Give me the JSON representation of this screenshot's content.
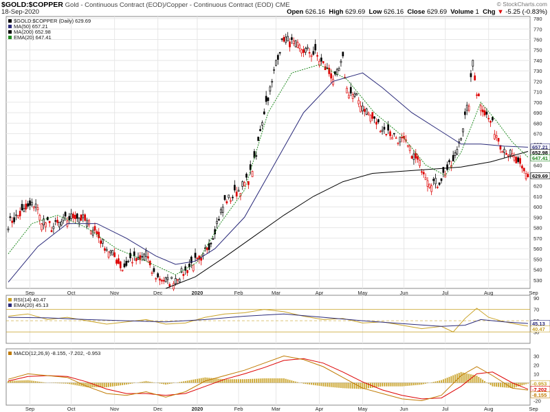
{
  "header": {
    "symbol": "$GOLD:$COPPER",
    "description": "Gold - Continuous Contract (EOD)/Copper - Continuous Contract (EOD)",
    "exchange": "CME",
    "date": "18-Sep-2020",
    "brand": "© StockCharts.com",
    "ohlc": [
      {
        "label": "Open",
        "value": "626.16"
      },
      {
        "label": "High",
        "value": "629.69"
      },
      {
        "label": "Low",
        "value": "626.16"
      },
      {
        "label": "Close",
        "value": "629.69"
      },
      {
        "label": "Volume",
        "value": "1"
      },
      {
        "label": "Chg",
        "value": "-5.25 (-0.83%)"
      }
    ],
    "chg_arrow": "▼"
  },
  "colors": {
    "up": "#000000",
    "down": "#dd0000",
    "ma50": "#2a2a7a",
    "ma200": "#000000",
    "ema20": "#1f8a1f",
    "rsi": "#c9a227",
    "rsi_ema": "#2a2a7a",
    "macd": "#c07a00",
    "signal": "#dd0000",
    "hist": "#c9a227",
    "grid": "#e6e6e6"
  },
  "chart_data": [
    {
      "type": "candlestick",
      "panel": "price",
      "legend": [
        {
          "label": "$GOLD:$COPPER (Daily) 629.69",
          "color": "#000000"
        },
        {
          "label": "MA(50) 657.21",
          "color": "#2a2a7a"
        },
        {
          "label": "MA(200) 652.98",
          "color": "#000000"
        },
        {
          "label": "EMA(20) 647.41",
          "color": "#1f8a1f"
        }
      ],
      "x_labels": [
        "Sep",
        "Oct",
        "Nov",
        "Dec",
        "2020",
        "Feb",
        "Mar",
        "Apr",
        "May",
        "Jun",
        "Jul",
        "Aug",
        "Sep"
      ],
      "y_ticks": [
        530,
        540,
        550,
        560,
        570,
        580,
        590,
        600,
        610,
        620,
        630,
        640,
        650,
        660,
        670,
        680,
        690,
        700,
        710,
        720,
        730,
        740,
        750,
        760,
        770,
        780
      ],
      "ylim": [
        522,
        782
      ],
      "price_path": [
        [
          0,
          584
        ],
        [
          8,
          596
        ],
        [
          14,
          604
        ],
        [
          16,
          590
        ],
        [
          22,
          580
        ],
        [
          28,
          586
        ],
        [
          34,
          592
        ],
        [
          38,
          588
        ],
        [
          43,
          580
        ],
        [
          48,
          565
        ],
        [
          54,
          552
        ],
        [
          58,
          541
        ],
        [
          62,
          550
        ],
        [
          67,
          548
        ],
        [
          70,
          558
        ],
        [
          72,
          540
        ],
        [
          76,
          532
        ],
        [
          82,
          528
        ],
        [
          86,
          534
        ],
        [
          90,
          538
        ],
        [
          94,
          548
        ],
        [
          98,
          545
        ],
        [
          100,
          558
        ],
        [
          103,
          567
        ],
        [
          106,
          585
        ],
        [
          110,
          605
        ],
        [
          114,
          610
        ],
        [
          118,
          618
        ],
        [
          122,
          626
        ],
        [
          126,
          648
        ],
        [
          128,
          675
        ],
        [
          131,
          700
        ],
        [
          134,
          718
        ],
        [
          136,
          740
        ],
        [
          140,
          762
        ],
        [
          144,
          756
        ],
        [
          150,
          750
        ],
        [
          156,
          746
        ],
        [
          162,
          730
        ],
        [
          166,
          722
        ],
        [
          170,
          740
        ],
        [
          172,
          712
        ],
        [
          178,
          702
        ],
        [
          186,
          682
        ],
        [
          192,
          672
        ],
        [
          196,
          668
        ],
        [
          202,
          660
        ],
        [
          206,
          648
        ],
        [
          210,
          638
        ],
        [
          214,
          626
        ],
        [
          218,
          622
        ],
        [
          222,
          634
        ],
        [
          226,
          642
        ],
        [
          230,
          670
        ],
        [
          234,
          700
        ],
        [
          236,
          740
        ],
        [
          238,
          710
        ],
        [
          242,
          690
        ],
        [
          246,
          678
        ],
        [
          250,
          660
        ],
        [
          256,
          648
        ],
        [
          261,
          634
        ],
        [
          264,
          630
        ]
      ],
      "moving_averages": {
        "ma50": [
          [
            0,
            528
          ],
          [
            15,
            562
          ],
          [
            30,
            584
          ],
          [
            45,
            584
          ],
          [
            60,
            570
          ],
          [
            75,
            553
          ],
          [
            85,
            545
          ],
          [
            95,
            548
          ],
          [
            105,
            560
          ],
          [
            120,
            590
          ],
          [
            135,
            640
          ],
          [
            150,
            690
          ],
          [
            165,
            720
          ],
          [
            180,
            728
          ],
          [
            190,
            714
          ],
          [
            205,
            690
          ],
          [
            220,
            672
          ],
          [
            230,
            660
          ],
          [
            240,
            660
          ],
          [
            252,
            658
          ],
          [
            264,
            657
          ]
        ],
        "ma200": [
          [
            80,
            522
          ],
          [
            95,
            533
          ],
          [
            110,
            552
          ],
          [
            125,
            572
          ],
          [
            140,
            592
          ],
          [
            155,
            610
          ],
          [
            170,
            624
          ],
          [
            185,
            632
          ],
          [
            200,
            634
          ],
          [
            215,
            636
          ],
          [
            230,
            638
          ],
          [
            245,
            643
          ],
          [
            264,
            652.98
          ]
        ],
        "ema20": [
          [
            0,
            555
          ],
          [
            12,
            584
          ],
          [
            25,
            592
          ],
          [
            40,
            580
          ],
          [
            55,
            560
          ],
          [
            70,
            548
          ],
          [
            85,
            535
          ],
          [
            96,
            547
          ],
          [
            108,
            585
          ],
          [
            120,
            616
          ],
          [
            132,
            690
          ],
          [
            144,
            728
          ],
          [
            158,
            736
          ],
          [
            172,
            722
          ],
          [
            186,
            690
          ],
          [
            200,
            668
          ],
          [
            212,
            640
          ],
          [
            222,
            630
          ],
          [
            230,
            652
          ],
          [
            240,
            700
          ],
          [
            248,
            682
          ],
          [
            256,
            662
          ],
          [
            264,
            647.41
          ]
        ]
      },
      "last_labels": [
        {
          "value": 657.21,
          "text": "657.21",
          "color": "#2a2a7a"
        },
        {
          "value": 652.98,
          "text": "652.98",
          "color": "#000000"
        },
        {
          "value": 647.41,
          "text": "647.41",
          "color": "#1f8a1f"
        },
        {
          "value": 629.69,
          "text": "629.69",
          "color": "#000000"
        }
      ]
    },
    {
      "type": "line",
      "panel": "rsi",
      "legend": [
        {
          "label": "RSI(14) 40.47",
          "color": "#c9a227"
        },
        {
          "label": "EMA(20) 45.13",
          "color": "#2a2a7a"
        }
      ],
      "y_ticks": [
        30,
        50,
        70,
        90
      ],
      "ylim": [
        10,
        95
      ],
      "levels": [
        30,
        50,
        70
      ],
      "rsi": [
        [
          0,
          58
        ],
        [
          10,
          62
        ],
        [
          20,
          52
        ],
        [
          30,
          56
        ],
        [
          40,
          50
        ],
        [
          50,
          44
        ],
        [
          60,
          48
        ],
        [
          70,
          52
        ],
        [
          80,
          44
        ],
        [
          90,
          46
        ],
        [
          100,
          56
        ],
        [
          110,
          62
        ],
        [
          120,
          64
        ],
        [
          130,
          70
        ],
        [
          140,
          66
        ],
        [
          150,
          58
        ],
        [
          160,
          52
        ],
        [
          170,
          54
        ],
        [
          180,
          46
        ],
        [
          190,
          48
        ],
        [
          200,
          42
        ],
        [
          210,
          36
        ],
        [
          220,
          40
        ],
        [
          226,
          30
        ],
        [
          232,
          54
        ],
        [
          238,
          72
        ],
        [
          244,
          56
        ],
        [
          252,
          48
        ],
        [
          258,
          44
        ],
        [
          264,
          40.47
        ]
      ],
      "ema": [
        [
          0,
          56
        ],
        [
          20,
          55
        ],
        [
          40,
          52
        ],
        [
          60,
          50
        ],
        [
          80,
          48
        ],
        [
          100,
          52
        ],
        [
          120,
          58
        ],
        [
          140,
          62
        ],
        [
          160,
          56
        ],
        [
          180,
          50
        ],
        [
          200,
          45
        ],
        [
          220,
          40
        ],
        [
          232,
          42
        ],
        [
          240,
          52
        ],
        [
          252,
          48
        ],
        [
          264,
          45.13
        ]
      ],
      "last_labels": [
        {
          "value": 45.13,
          "text": "45.13",
          "color": "#2a2a7a"
        },
        {
          "value": 40.47,
          "text": "40.47",
          "color": "#c9a227"
        }
      ]
    },
    {
      "type": "line",
      "panel": "macd",
      "legend": [
        {
          "label": "MACD(12,26,9) -8.155, -7.202, -0.953",
          "color": "#c07a00"
        }
      ],
      "y_ticks": [
        -20,
        -10,
        0,
        10,
        20,
        30
      ],
      "ylim": [
        -25,
        38
      ],
      "macd": [
        [
          0,
          4
        ],
        [
          10,
          10
        ],
        [
          20,
          8
        ],
        [
          30,
          6
        ],
        [
          40,
          -4
        ],
        [
          50,
          -12
        ],
        [
          60,
          -14
        ],
        [
          70,
          -10
        ],
        [
          80,
          -16
        ],
        [
          90,
          -10
        ],
        [
          100,
          2
        ],
        [
          110,
          8
        ],
        [
          120,
          14
        ],
        [
          130,
          22
        ],
        [
          140,
          30
        ],
        [
          150,
          26
        ],
        [
          160,
          18
        ],
        [
          170,
          6
        ],
        [
          180,
          -6
        ],
        [
          190,
          -12
        ],
        [
          200,
          -18
        ],
        [
          210,
          -20
        ],
        [
          220,
          -14
        ],
        [
          230,
          8
        ],
        [
          238,
          18
        ],
        [
          246,
          8
        ],
        [
          256,
          -6
        ],
        [
          264,
          -8.155
        ]
      ],
      "signal": [
        [
          0,
          2
        ],
        [
          10,
          7
        ],
        [
          20,
          8
        ],
        [
          30,
          7
        ],
        [
          40,
          1
        ],
        [
          50,
          -7
        ],
        [
          60,
          -12
        ],
        [
          70,
          -12
        ],
        [
          80,
          -14
        ],
        [
          90,
          -12
        ],
        [
          100,
          -4
        ],
        [
          110,
          4
        ],
        [
          120,
          10
        ],
        [
          130,
          17
        ],
        [
          140,
          25
        ],
        [
          150,
          27
        ],
        [
          160,
          22
        ],
        [
          170,
          12
        ],
        [
          180,
          1
        ],
        [
          190,
          -8
        ],
        [
          200,
          -14
        ],
        [
          210,
          -18
        ],
        [
          220,
          -17
        ],
        [
          230,
          -4
        ],
        [
          238,
          10
        ],
        [
          246,
          12
        ],
        [
          256,
          0
        ],
        [
          264,
          -7.202
        ]
      ],
      "last_labels": [
        {
          "value": -0.953,
          "text": "-0.953",
          "color": "#c9a227"
        },
        {
          "value": -7.202,
          "text": "-7.202",
          "color": "#dd0000"
        },
        {
          "value": -8.155,
          "text": "-8.155",
          "color": "#c07a00"
        }
      ]
    }
  ]
}
